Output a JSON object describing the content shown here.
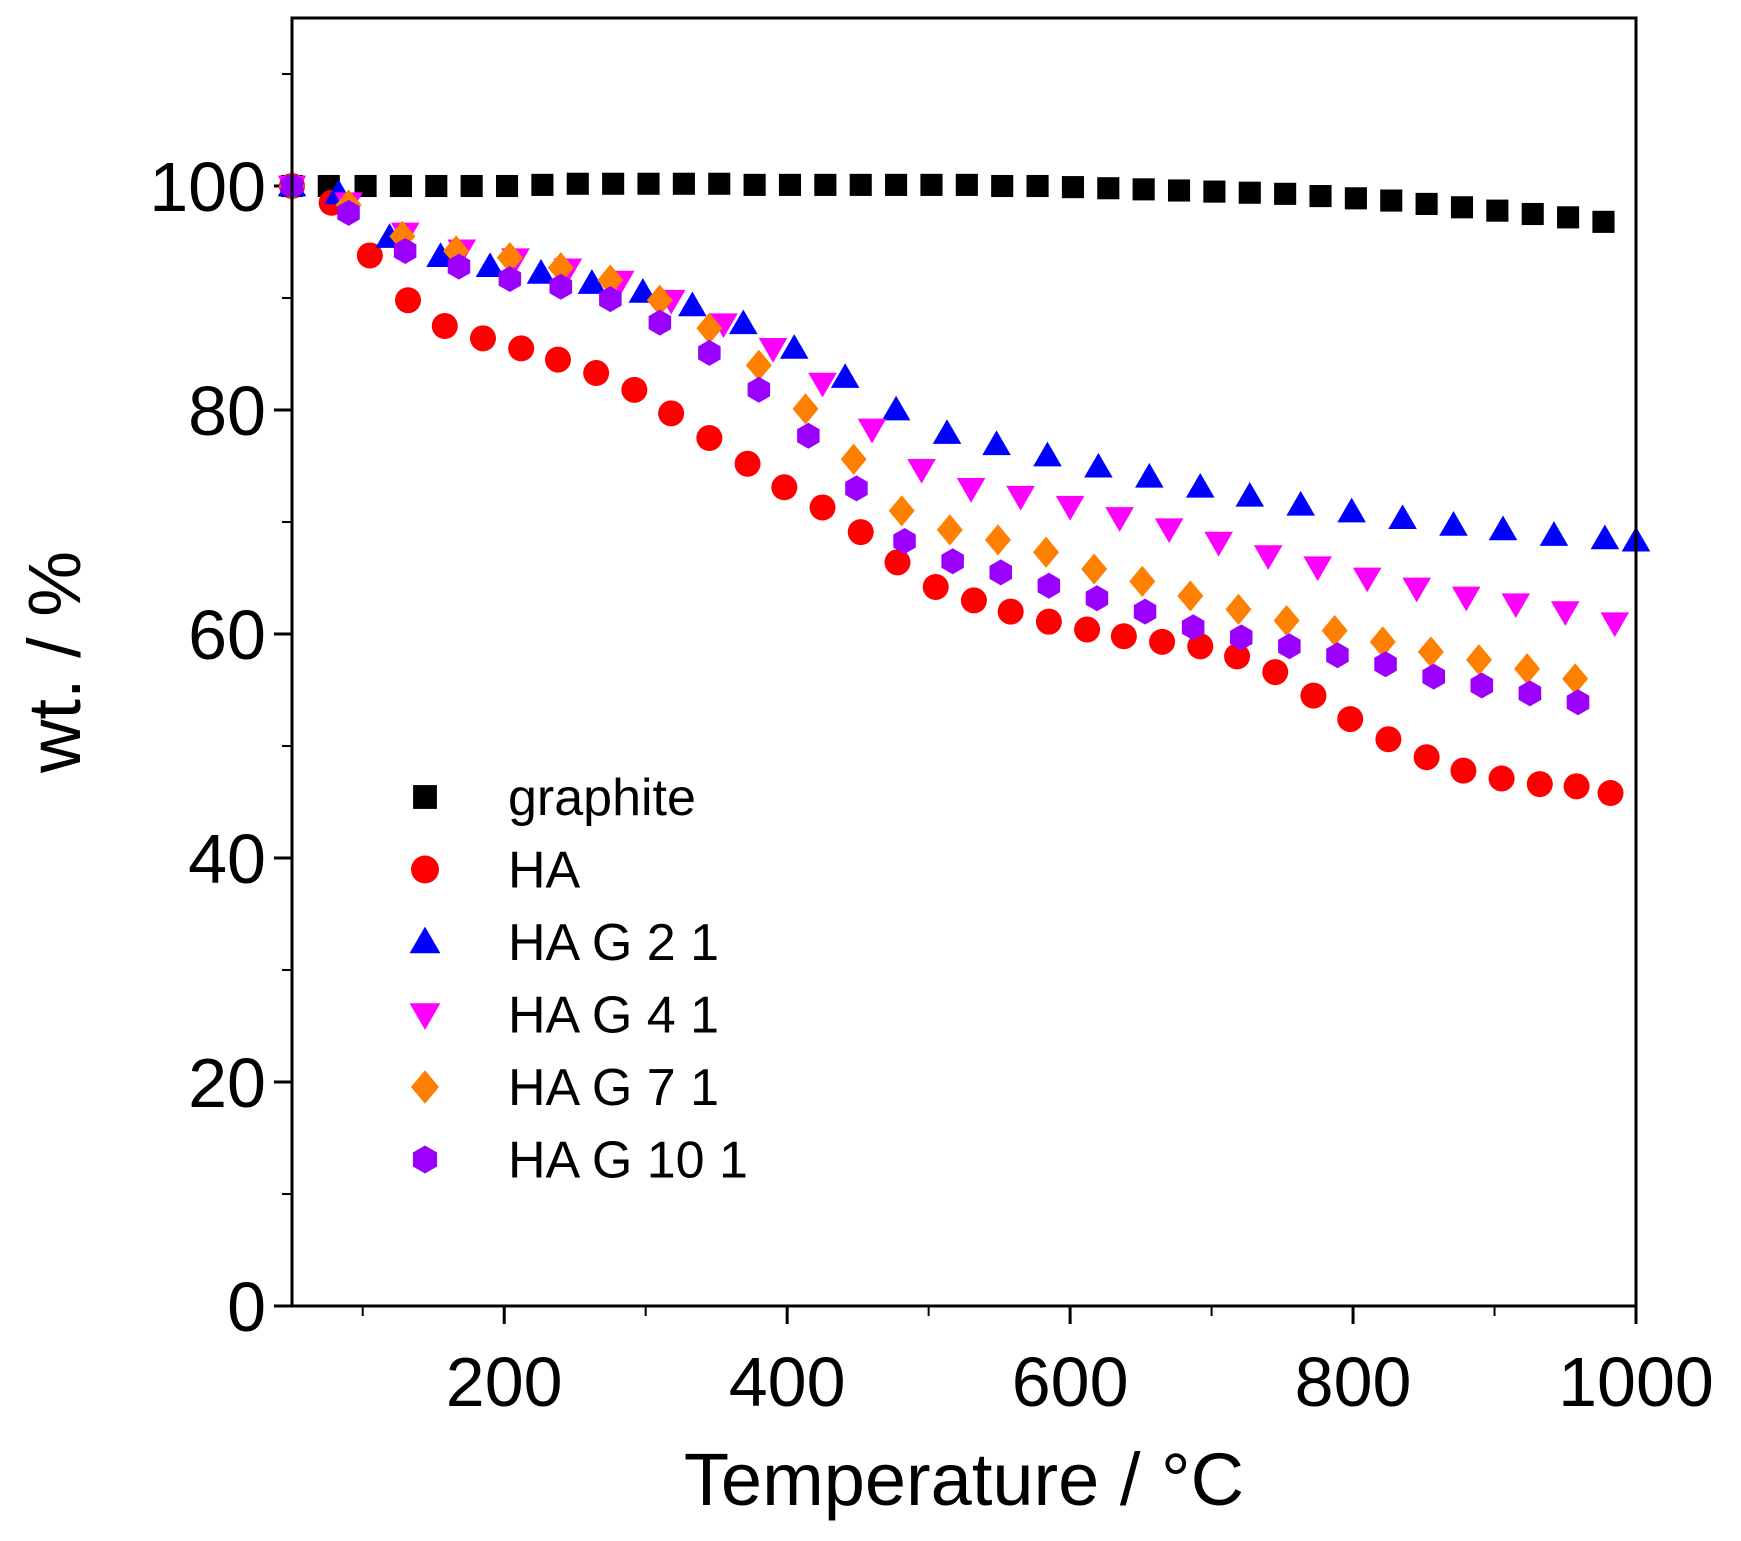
{
  "chart_data": {
    "type": "scatter",
    "xlabel": "Temperature / °C",
    "ylabel": "wt. / %",
    "xlim": [
      50,
      1000
    ],
    "ylim": [
      0,
      115
    ],
    "x_ticks": [
      200,
      400,
      600,
      800,
      1000
    ],
    "y_ticks": [
      0,
      20,
      40,
      60,
      80,
      100
    ],
    "legend_position": "lower-left",
    "series": [
      {
        "name": "graphite",
        "marker": "square",
        "color": "#000000",
        "x": [
          50,
          76,
          102,
          127,
          152,
          177,
          202,
          227,
          252,
          277,
          302,
          327,
          352,
          377,
          402,
          427,
          452,
          477,
          502,
          527,
          552,
          577,
          602,
          627,
          652,
          677,
          702,
          727,
          752,
          777,
          802,
          827,
          852,
          877,
          902,
          927,
          952,
          977
        ],
        "y": [
          100,
          100,
          100,
          100,
          100,
          100,
          100,
          100.1,
          100.2,
          100.2,
          100.2,
          100.2,
          100.2,
          100.1,
          100.1,
          100.1,
          100.1,
          100.1,
          100.1,
          100.1,
          100,
          100,
          99.9,
          99.8,
          99.7,
          99.6,
          99.5,
          99.4,
          99.3,
          99.1,
          98.9,
          98.7,
          98.4,
          98.1,
          97.8,
          97.5,
          97.2,
          96.8
        ]
      },
      {
        "name": "HA",
        "marker": "circle",
        "color": "#ff0000",
        "x": [
          50,
          78,
          105,
          132,
          158,
          185,
          212,
          238,
          265,
          292,
          318,
          345,
          372,
          398,
          425,
          452,
          478,
          505,
          532,
          558,
          585,
          612,
          638,
          665,
          692,
          718,
          745,
          772,
          798,
          825,
          852,
          878,
          905,
          932,
          958,
          982
        ],
        "y": [
          100,
          98.5,
          93.8,
          89.8,
          87.5,
          86.4,
          85.5,
          84.5,
          83.3,
          81.8,
          79.7,
          77.5,
          75.2,
          73.1,
          71.3,
          69.1,
          66.4,
          64.2,
          63.0,
          62.0,
          61.1,
          60.4,
          59.8,
          59.3,
          58.9,
          58.0,
          56.6,
          54.5,
          52.4,
          50.6,
          49.0,
          47.8,
          47.1,
          46.6,
          46.4,
          45.8
        ]
      },
      {
        "name": "HA G 2 1",
        "marker": "triangle-up",
        "color": "#0000ff",
        "x": [
          50,
          83,
          119,
          155,
          190,
          226,
          262,
          298,
          333,
          369,
          405,
          441,
          477,
          513,
          548,
          584,
          620,
          656,
          692,
          727,
          763,
          799,
          835,
          871,
          906,
          942,
          978,
          1000
        ],
        "y": [
          100,
          99.3,
          95.4,
          93.7,
          92.8,
          92.2,
          91.3,
          90.5,
          89.3,
          87.7,
          85.5,
          82.9,
          80.0,
          77.9,
          76.9,
          75.9,
          74.9,
          74.0,
          73.1,
          72.3,
          71.5,
          70.9,
          70.3,
          69.7,
          69.3,
          68.8,
          68.5,
          68.3
        ]
      },
      {
        "name": "HA G 4 1",
        "marker": "triangle-down",
        "color": "#ff00ff",
        "x": [
          50,
          90,
          130,
          170,
          208,
          245,
          282,
          318,
          355,
          390,
          425,
          460,
          495,
          530,
          565,
          600,
          635,
          670,
          705,
          740,
          775,
          810,
          845,
          880,
          915,
          950,
          985
        ],
        "y": [
          100,
          98.5,
          95.8,
          94.3,
          93.5,
          92.6,
          91.5,
          89.8,
          87.7,
          85.5,
          82.4,
          78.3,
          74.7,
          73.0,
          72.3,
          71.4,
          70.4,
          69.4,
          68.2,
          67.0,
          66.0,
          65.0,
          64.1,
          63.3,
          62.7,
          62.0,
          61.0
        ]
      },
      {
        "name": "HA G 7 1",
        "marker": "diamond",
        "color": "#ff8000",
        "x": [
          50,
          90,
          128,
          166,
          204,
          240,
          275,
          310,
          345,
          380,
          413,
          447,
          481,
          515,
          549,
          583,
          617,
          651,
          685,
          719,
          753,
          787,
          821,
          855,
          889,
          923,
          957
        ],
        "y": [
          100,
          98.3,
          95.5,
          94.2,
          93.6,
          92.7,
          91.6,
          89.8,
          87.3,
          84.0,
          80.1,
          75.6,
          71.0,
          69.3,
          68.4,
          67.3,
          65.8,
          64.7,
          63.4,
          62.2,
          61.2,
          60.3,
          59.3,
          58.4,
          57.7,
          56.9,
          56.0
        ]
      },
      {
        "name": "HA G 10 1",
        "marker": "hexagon",
        "color": "#9b00ff",
        "x": [
          50,
          90,
          130,
          168,
          204,
          240,
          275,
          310,
          345,
          380,
          415,
          449,
          483,
          517,
          551,
          585,
          619,
          653,
          687,
          721,
          755,
          789,
          823,
          857,
          891,
          925,
          959
        ],
        "y": [
          100,
          97.6,
          94.2,
          92.8,
          91.7,
          91.0,
          89.9,
          87.8,
          85.1,
          81.8,
          77.7,
          73.0,
          68.3,
          66.5,
          65.5,
          64.3,
          63.2,
          62.0,
          60.6,
          59.7,
          58.9,
          58.1,
          57.3,
          56.2,
          55.4,
          54.7,
          53.9
        ]
      }
    ]
  }
}
